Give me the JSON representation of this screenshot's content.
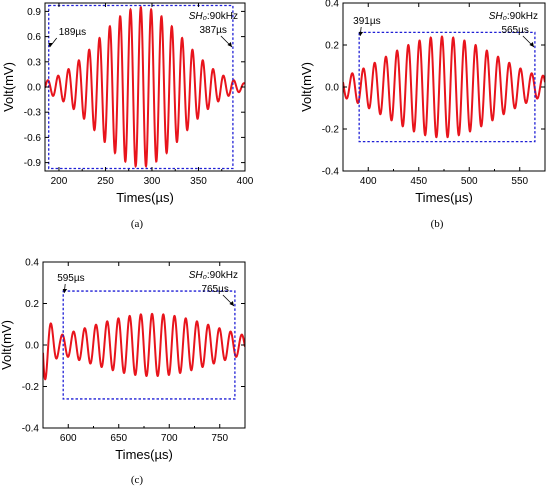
{
  "chart_data": [
    {
      "type": "line",
      "caption": "(a)",
      "xlabel": "Times(µs)",
      "ylabel": "Volt(mV)",
      "xlim": [
        185,
        400
      ],
      "ylim": [
        -1.0,
        1.0
      ],
      "xticks": [
        200,
        250,
        300,
        350,
        400
      ],
      "xtick_labels": [
        "200",
        "250",
        "300",
        "350",
        "400"
      ],
      "yticks": [
        -0.9,
        -0.6,
        -0.3,
        0.0,
        0.3,
        0.6,
        0.9
      ],
      "ytick_labels": [
        "-0.9",
        "-0.6",
        "-0.3",
        "0.0",
        "0.3",
        "0.6",
        "0.9"
      ],
      "mode_label": "SH₀:90kHz",
      "window": {
        "x0": 189,
        "x1": 387,
        "y0": -0.97,
        "y1": 0.97
      },
      "annotations": [
        {
          "text": "189µs",
          "x": 189
        },
        {
          "text": "387µs",
          "x": 387
        }
      ],
      "signal": {
        "center": 288,
        "amplitude": 0.95,
        "sigma": 45,
        "frequency_khz": 90,
        "tail_amplitude": 0.05
      },
      "color": "#e8141c",
      "window_color": "#1f1fd6"
    },
    {
      "type": "line",
      "caption": "(b)",
      "xlabel": "Times(µs)",
      "ylabel": "Volt(mV)",
      "xlim": [
        375,
        575
      ],
      "ylim": [
        -0.4,
        0.4
      ],
      "xticks": [
        400,
        450,
        500,
        550
      ],
      "xtick_labels": [
        "400",
        "450",
        "500",
        "550"
      ],
      "yticks": [
        -0.4,
        -0.2,
        0.0,
        0.2,
        0.4
      ],
      "ytick_labels": [
        "-0.4",
        "-0.2",
        "0.0",
        "0.2",
        "0.4"
      ],
      "mode_label": "SH₀:90kHz",
      "window": {
        "x0": 391,
        "x1": 565,
        "y0": -0.26,
        "y1": 0.26
      },
      "annotations": [
        {
          "text": "391µs",
          "x": 391
        },
        {
          "text": "565µs",
          "x": 565
        }
      ],
      "signal": {
        "center": 473,
        "amplitude": 0.24,
        "sigma": 55,
        "frequency_khz": 90,
        "tail_amplitude": 0.06
      },
      "color": "#e8141c",
      "window_color": "#1f1fd6"
    },
    {
      "type": "line",
      "caption": "(c)",
      "xlabel": "Times(µs)",
      "ylabel": "Volt(mV)",
      "xlim": [
        575,
        775
      ],
      "ylim": [
        -0.4,
        0.4
      ],
      "xticks": [
        600,
        650,
        700,
        750
      ],
      "xtick_labels": [
        "600",
        "650",
        "700",
        "750"
      ],
      "yticks": [
        -0.4,
        -0.2,
        0.0,
        0.2,
        0.4
      ],
      "ytick_labels": [
        "-0.4",
        "-0.2",
        "0.0",
        "0.2",
        "0.4"
      ],
      "mode_label": "SH₀:90kHz",
      "window": {
        "x0": 595,
        "x1": 765,
        "y0": -0.26,
        "y1": 0.26
      },
      "annotations": [
        {
          "text": "595µs",
          "x": 595
        },
        {
          "text": "765µs",
          "x": 765
        }
      ],
      "signal": {
        "center": 683,
        "amplitude": 0.15,
        "sigma": 60,
        "frequency_khz": 90,
        "tail_amplitude": 0.04,
        "start_amplitude": 0.2
      },
      "color": "#e8141c",
      "window_color": "#1f1fd6"
    }
  ]
}
